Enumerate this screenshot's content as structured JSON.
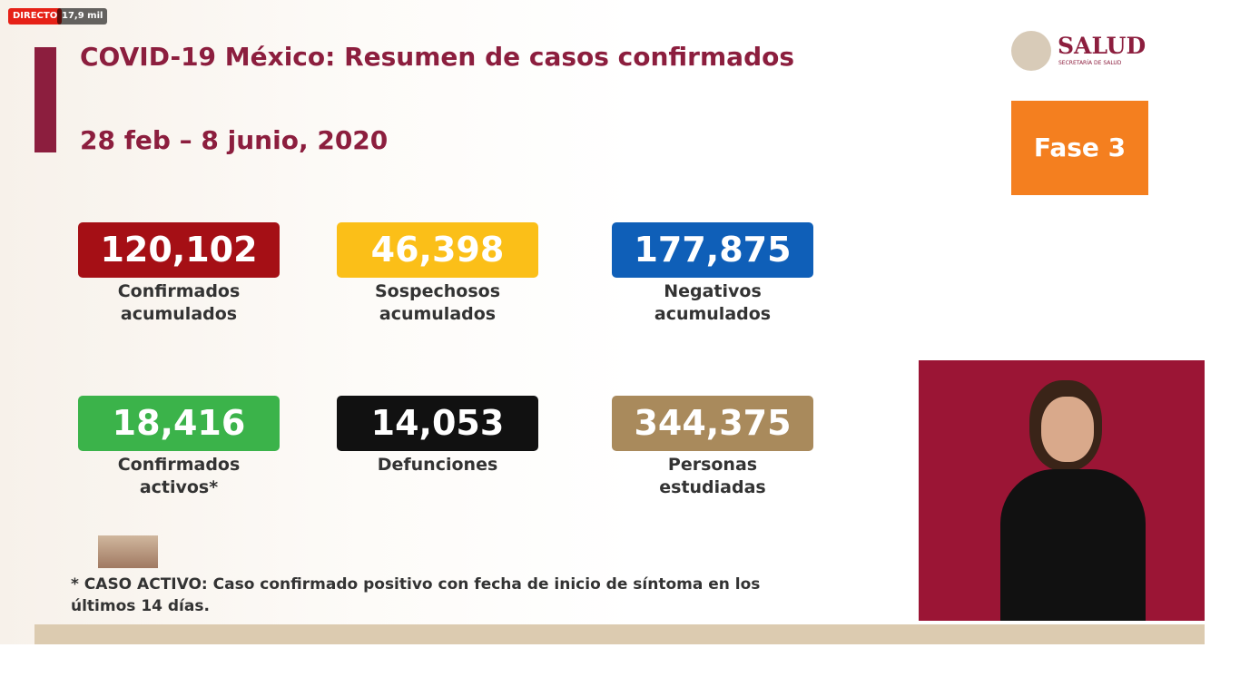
{
  "stream": {
    "live": "DIRECTO",
    "views": "17,9 mil"
  },
  "header": {
    "title": "COVID-19 México: Resumen de casos confirmados",
    "date": "28 feb – 8 junio, 2020"
  },
  "logo": {
    "name": "SALUD",
    "subtitle": "SECRETARÍA DE SALUD"
  },
  "phase": "Fase 3",
  "stats": [
    {
      "value": "120,102",
      "label": [
        "Confirmados",
        "acumulados"
      ]
    },
    {
      "value": "46,398",
      "label": [
        "Sospechosos",
        "acumulados"
      ]
    },
    {
      "value": "177,875",
      "label": [
        "Negativos",
        "acumulados"
      ]
    },
    {
      "value": "18,416",
      "label": [
        "Confirmados",
        "activos*"
      ]
    },
    {
      "value": "14,053",
      "label": [
        "Defunciones"
      ]
    },
    {
      "value": "344,375",
      "label": [
        "Personas",
        "estudiadas"
      ]
    }
  ],
  "footnote": "* CASO ACTIVO: Caso confirmado positivo con fecha de inicio de síntoma en los últimos 14 días."
}
